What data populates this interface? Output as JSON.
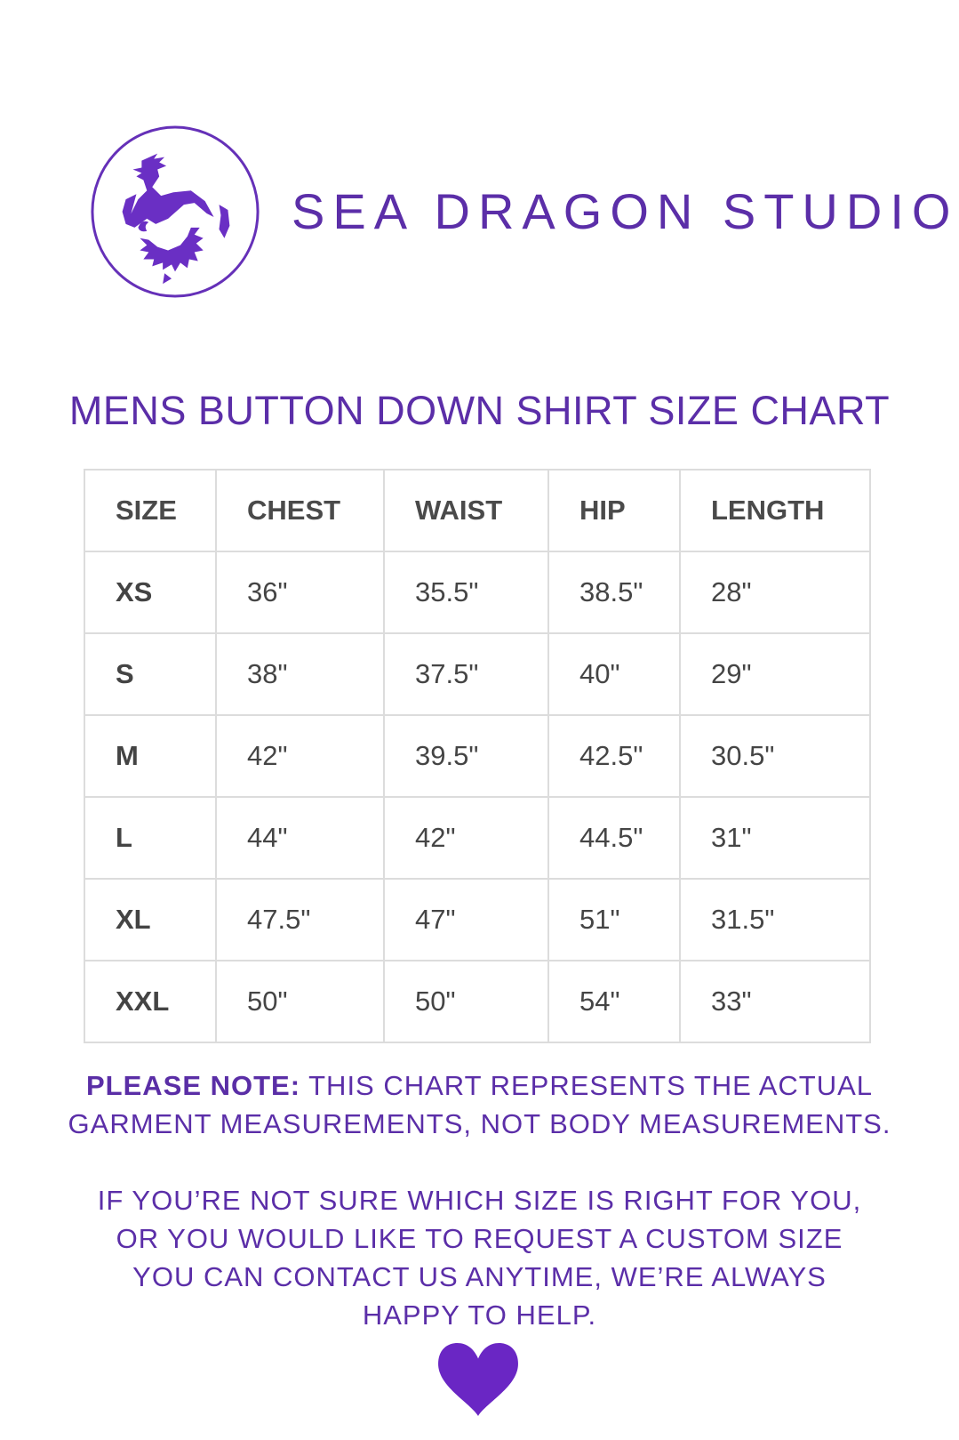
{
  "brand": {
    "name": "SEA DRAGON STUDIO",
    "logo_icon": "sea-dragon-logo",
    "color": "#5b2ea8"
  },
  "title": "MENS BUTTON DOWN SHIRT SIZE CHART",
  "table": {
    "headers": [
      "SIZE",
      "CHEST",
      "WAIST",
      "HIP",
      "LENGTH"
    ],
    "rows": [
      [
        "XS",
        "36\"",
        "35.5\"",
        "38.5\"",
        "28\""
      ],
      [
        "S",
        "38\"",
        "37.5\"",
        "40\"",
        "29\""
      ],
      [
        "M",
        "42\"",
        "39.5\"",
        "42.5\"",
        "30.5\""
      ],
      [
        "L",
        "44\"",
        "42\"",
        "44.5\"",
        "31\""
      ],
      [
        "XL",
        "47.5\"",
        "47\"",
        "51\"",
        "31.5\""
      ],
      [
        "XXL",
        "50\"",
        "50\"",
        "54\"",
        "33\""
      ]
    ]
  },
  "note": {
    "label": "PLEASE NOTE:",
    "line1": " THIS CHART REPRESENTS THE ACTUAL",
    "line2": "GARMENT MEASUREMENTS, NOT BODY MEASUREMENTS."
  },
  "contact": {
    "lines": [
      "IF YOU’RE NOT SURE WHICH SIZE IS RIGHT FOR YOU,",
      "OR YOU WOULD LIKE TO REQUEST A CUSTOM SIZE",
      "YOU CAN CONTACT US ANYTIME, WE’RE ALWAYS",
      "HAPPY TO HELP."
    ]
  },
  "heart": {
    "icon": "heart-icon",
    "color": "#6a26c4"
  }
}
